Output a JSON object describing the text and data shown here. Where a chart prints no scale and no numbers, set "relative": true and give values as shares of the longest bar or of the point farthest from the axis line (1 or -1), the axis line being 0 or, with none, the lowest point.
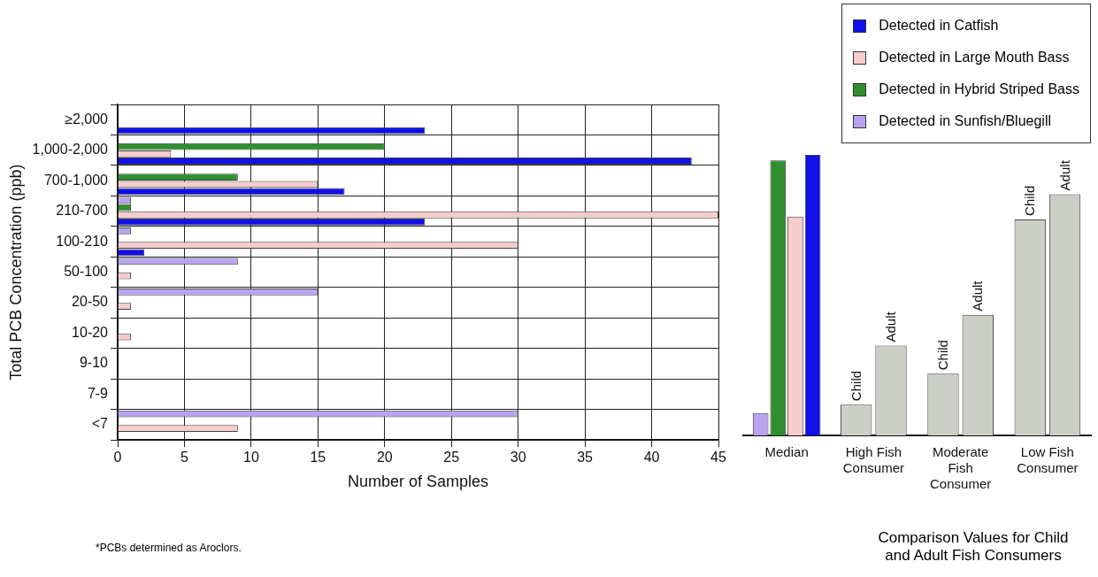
{
  "chart_data": [
    {
      "type": "bar",
      "orientation": "horizontal",
      "xlabel": "Number of Samples",
      "ylabel": "Total PCB Concentration (ppb)",
      "categories": [
        "≥2,000",
        "1,000-2,000",
        "700-1,000",
        "210-700",
        "100-210",
        "50-100",
        "20-50",
        "10-20",
        "9-10",
        "7-9",
        "<7"
      ],
      "series": [
        {
          "name": "Detected in Catfish",
          "color": "#1010e8",
          "values": [
            23,
            43,
            17,
            23,
            2,
            0,
            0,
            0,
            0,
            0,
            0
          ]
        },
        {
          "name": "Detected in Large Mouth Bass",
          "color": "#f6cccc",
          "values": [
            0,
            4,
            15,
            45,
            30,
            1,
            1,
            1,
            0,
            0,
            9
          ]
        },
        {
          "name": "Detected in Hybrid Striped Bass",
          "color": "#2f8f2f",
          "values": [
            0,
            20,
            9,
            1,
            0,
            0,
            0,
            0,
            0,
            0,
            0
          ]
        },
        {
          "name": "Detected in Sunfish/Bluegill",
          "color": "#b8a4f0",
          "values": [
            0,
            0,
            0,
            1,
            1,
            9,
            15,
            0,
            0,
            0,
            30
          ]
        }
      ],
      "xlim": [
        0,
        45
      ],
      "xticks": [
        0,
        5,
        10,
        15,
        20,
        25,
        30,
        35,
        40,
        45
      ],
      "grid": true,
      "legend": "top right",
      "annotations": [
        "*PCBs determined as Aroclors."
      ]
    },
    {
      "type": "bar",
      "relative": true,
      "xlabel": "Comparison Values for Child and Adult Fish Consumers",
      "categories": [
        "Median",
        "High Fish Consumer",
        "Moderate Fish Consumer",
        "Low Fish Consumer"
      ],
      "series": [
        {
          "color": "#b8a4f0",
          "values": [
            0.08,
            null,
            null,
            null
          ]
        },
        {
          "color": "#2f8f2f",
          "values": [
            0.98,
            null,
            null,
            null
          ]
        },
        {
          "color": "#f6cccc",
          "values": [
            0.78,
            null,
            null,
            null
          ]
        },
        {
          "color": "#1010e8",
          "values": [
            1,
            null,
            null,
            null
          ]
        },
        {
          "name": "Child",
          "color": "#cbcfc7",
          "values": [
            null,
            0.11,
            0.22,
            0.77
          ]
        },
        {
          "name": "Adult",
          "color": "#cbcfc7",
          "values": [
            null,
            0.32,
            0.43,
            0.86
          ]
        }
      ]
    }
  ]
}
